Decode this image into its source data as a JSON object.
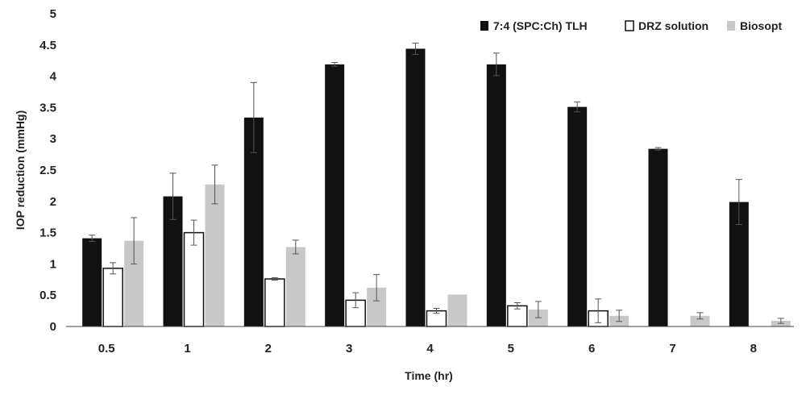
{
  "chart_data": {
    "type": "bar",
    "title": "",
    "xlabel": "Time (hr)",
    "ylabel": "IOP reduction (mmHg)",
    "ylim": [
      0,
      5
    ],
    "yticks": [
      "0",
      "0.5",
      "1",
      "1.5",
      "2",
      "2.5",
      "3",
      "3.5",
      "4",
      "4.5",
      "5"
    ],
    "categories": [
      "0.5",
      "1",
      "2",
      "3",
      "4",
      "5",
      "6",
      "7",
      "8"
    ],
    "grid": false,
    "legend_position": "top-right",
    "series": [
      {
        "name": "7:4 (SPC:Ch) TLH",
        "color": "#111111",
        "style": "filled",
        "values": [
          1.41,
          2.08,
          3.34,
          4.19,
          4.44,
          4.19,
          3.51,
          2.84,
          1.99
        ],
        "errors": [
          0.05,
          0.37,
          0.56,
          0.03,
          0.09,
          0.18,
          0.08,
          0.02,
          0.36
        ]
      },
      {
        "name": "DRZ solution",
        "color": "#ffffff",
        "style": "outline",
        "values": [
          0.93,
          1.5,
          0.76,
          0.42,
          0.25,
          0.33,
          0.25,
          null,
          null
        ],
        "errors": [
          0.09,
          0.2,
          0.02,
          0.12,
          0.04,
          0.05,
          0.19,
          null,
          null
        ]
      },
      {
        "name": "Biosopt",
        "color": "#c8c8c8",
        "style": "filled",
        "values": [
          1.37,
          2.27,
          1.27,
          0.62,
          0.51,
          0.27,
          0.17,
          0.17,
          0.09
        ],
        "errors": [
          0.37,
          0.31,
          0.11,
          0.21,
          0.0,
          0.13,
          0.09,
          0.05,
          0.04
        ]
      }
    ]
  }
}
